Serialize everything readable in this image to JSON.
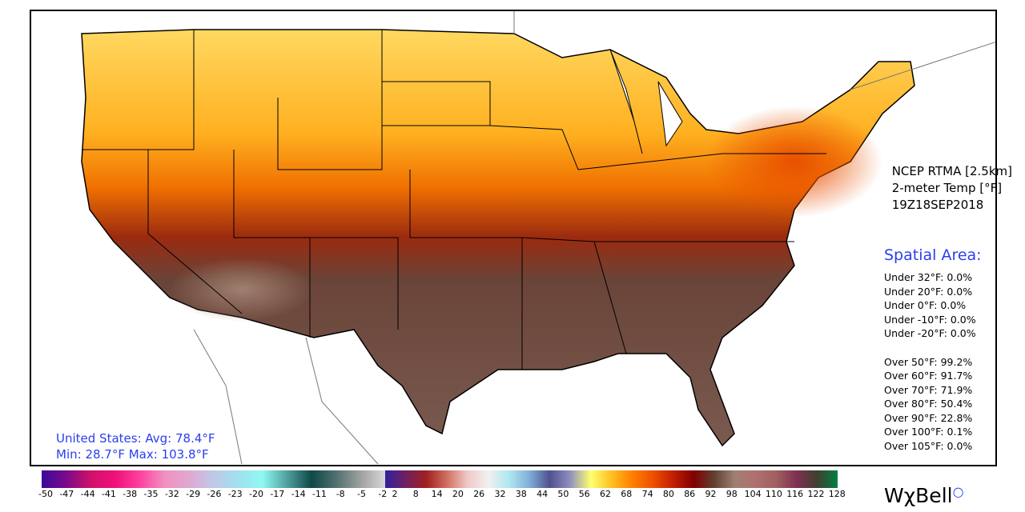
{
  "header": {
    "line1": "NCEP RTMA [2.5km]",
    "line2": "2-meter Temp [°F]",
    "line3": "19Z18SEP2018"
  },
  "spatial": {
    "title": "Spatial Area:",
    "under": [
      "Under 32°F: 0.0%",
      "Under 20°F: 0.0%",
      "Under 0°F: 0.0%",
      "Under -10°F: 0.0%",
      "Under -20°F: 0.0%"
    ],
    "over": [
      "Over 50°F: 99.2%",
      "Over 60°F: 91.7%",
      "Over 70°F: 71.9%",
      "Over 80°F: 50.4%",
      "Over 90°F: 22.8%",
      "Over 100°F: 0.1%",
      "Over 105°F: 0.0%"
    ]
  },
  "summary": {
    "avg": "United States: Avg:  78.4°F",
    "minmax": "Min:  28.7°F Max: 103.8°F"
  },
  "colorbar": {
    "left_ticks": [
      "-50",
      "-47",
      "-44",
      "-41",
      "-38",
      "-35",
      "-32",
      "-29",
      "-26",
      "-23",
      "-20",
      "-17",
      "-14",
      "-11",
      "-8",
      "-5",
      "-2"
    ],
    "right_ticks": [
      "2",
      "8",
      "14",
      "20",
      "26",
      "32",
      "38",
      "44",
      "50",
      "56",
      "62",
      "68",
      "74",
      "80",
      "86",
      "92",
      "98",
      "104",
      "110",
      "116",
      "122",
      "128"
    ]
  },
  "logo": "WχBell",
  "colors": {
    "accent": "#2a3ef0",
    "hot": "#604030",
    "warm": "#f07000",
    "mild": "#ffd040"
  }
}
